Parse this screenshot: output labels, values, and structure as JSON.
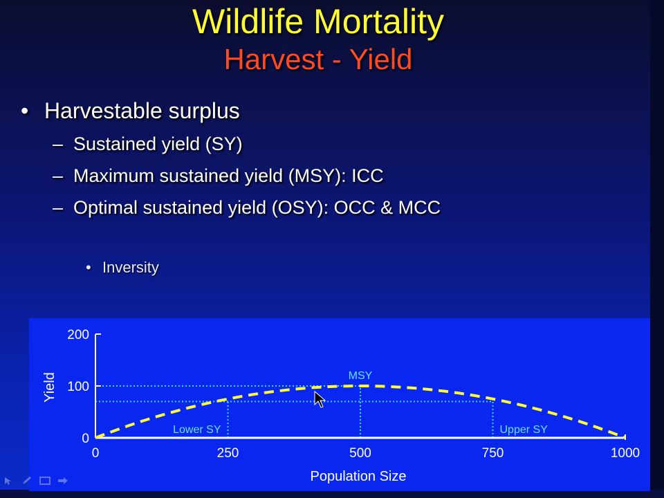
{
  "slide": {
    "title": "Wildlife Mortality",
    "subtitle": "Harvest - Yield",
    "bullet": "Harvestable surplus",
    "sub_bullets": [
      "Sustained yield (SY)",
      "Maximum sustained yield (MSY): ICC",
      "Optimal sustained yield (OSY): OCC & MCC"
    ],
    "sub_sub_bullet": "Inversity",
    "bullet_glyph": "•",
    "dash_glyph": "–"
  },
  "colors": {
    "title": "#ffff33",
    "subtitle": "#ff4a22",
    "curve": "#ffff33",
    "guide_lines": "#33ddff",
    "annotations": "#66e0ff",
    "axes": "#ffffff",
    "chart_bg": "#0a27ef"
  },
  "chart_data": {
    "type": "line",
    "title": "",
    "xlabel": "Population Size",
    "ylabel": "Yield",
    "xlim": [
      0,
      1000
    ],
    "ylim": [
      0,
      200
    ],
    "x_ticks": [
      0,
      250,
      500,
      750,
      1000
    ],
    "y_ticks": [
      0,
      100,
      200
    ],
    "grid": false,
    "series": [
      {
        "style": "dashed",
        "x": [
          0,
          250,
          500,
          750,
          1000
        ],
        "y": [
          0,
          70,
          100,
          70,
          0
        ]
      }
    ],
    "guides": [
      {
        "type": "horizontal",
        "y": 100,
        "x_from": 0,
        "x_to": 500
      },
      {
        "type": "horizontal",
        "y": 70,
        "x_from": 0,
        "x_to": 750
      },
      {
        "type": "vertical",
        "x": 250,
        "y_from": 0,
        "y_to": 70
      },
      {
        "type": "vertical",
        "x": 500,
        "y_from": 0,
        "y_to": 100
      },
      {
        "type": "vertical",
        "x": 750,
        "y_from": 0,
        "y_to": 70
      }
    ],
    "annotations": [
      {
        "text": "MSY",
        "x": 500,
        "y": 100,
        "position": "above"
      },
      {
        "text": "Lower SY",
        "x": 250,
        "y": 0,
        "position": "left"
      },
      {
        "text": "Upper SY",
        "x": 750,
        "y": 0,
        "position": "right"
      }
    ]
  },
  "toolbar_icons": [
    "arrow-icon",
    "pen-icon",
    "menu-icon",
    "next-icon"
  ]
}
